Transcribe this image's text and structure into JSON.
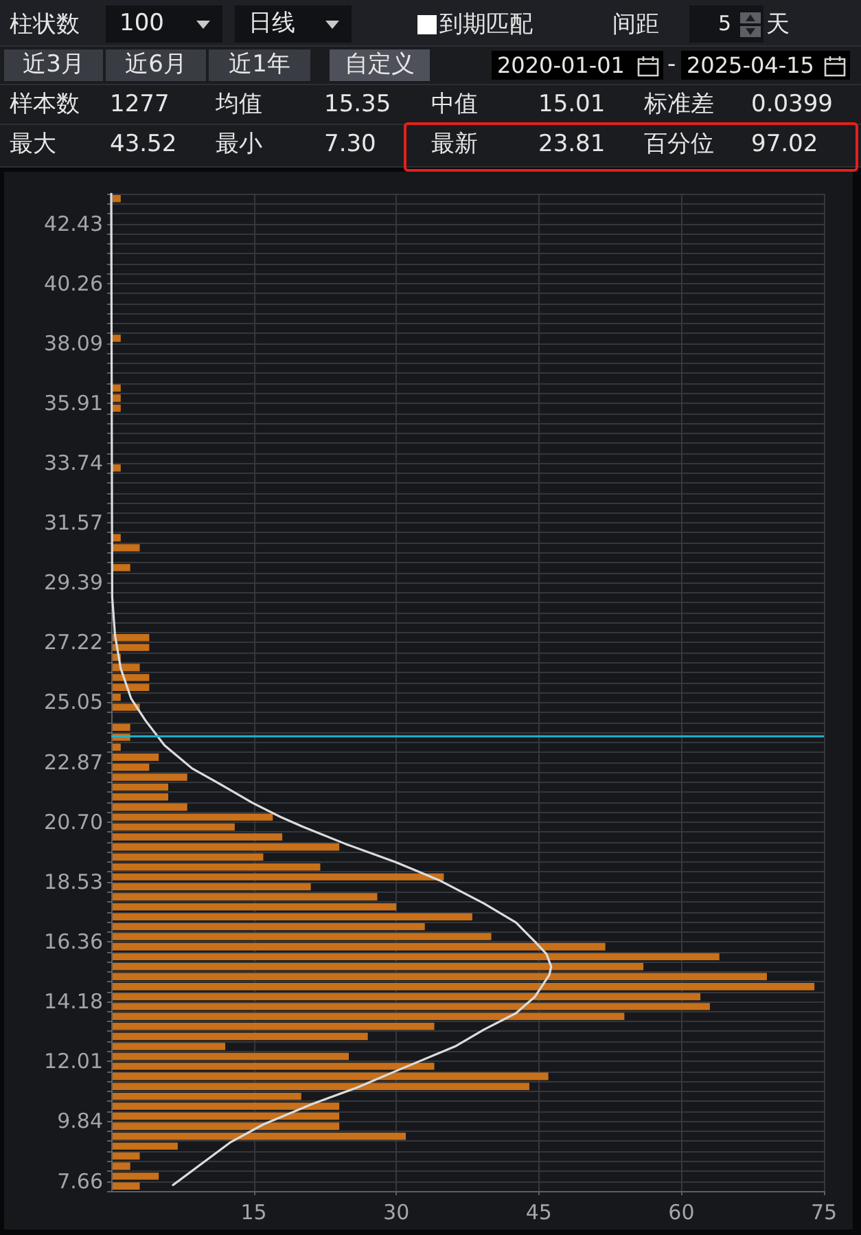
{
  "chart_data": {
    "type": "histogram",
    "orientation": "horizontal",
    "bins": [
      7.3,
      7.66,
      8.02,
      8.39,
      8.75,
      9.11,
      9.47,
      9.84,
      10.2,
      10.56,
      10.92,
      11.28,
      11.65,
      12.01,
      12.37,
      12.73,
      13.1,
      13.46,
      13.82,
      14.18,
      14.54,
      14.91,
      15.27,
      15.63,
      15.99,
      16.36,
      16.72,
      17.08,
      17.44,
      17.8,
      18.17,
      18.53,
      18.89,
      19.25,
      19.61,
      19.98,
      20.34,
      20.7,
      21.06,
      21.43,
      21.79,
      22.15,
      22.51,
      22.87,
      23.24,
      23.6,
      23.96,
      24.32,
      24.69,
      25.05,
      25.41,
      25.77,
      26.13,
      26.5,
      26.86,
      27.22,
      27.58,
      27.95,
      28.31,
      28.67,
      29.03,
      29.39,
      29.76,
      30.12,
      30.48,
      30.84,
      31.21,
      31.57,
      31.93,
      32.29,
      32.65,
      33.02,
      33.38,
      33.74,
      34.1,
      34.47,
      34.83,
      35.19,
      35.55,
      35.91,
      36.28,
      36.64,
      37,
      37.36,
      37.72,
      38.09,
      38.45,
      38.81,
      39.17,
      39.54,
      39.9,
      40.26,
      40.62,
      40.98,
      41.35,
      41.71,
      42.07,
      42.43,
      42.8,
      43.16,
      43.52
    ],
    "series": [
      {
        "color": "#c8701a",
        "values": [
          3,
          5,
          2,
          3,
          7,
          31,
          24,
          24,
          24,
          20,
          44,
          46,
          34,
          25,
          12,
          27,
          34,
          54,
          63,
          62,
          74,
          69,
          56,
          64,
          52,
          40,
          33,
          38,
          30,
          28,
          21,
          35,
          22,
          16,
          24,
          18,
          13,
          17,
          8,
          6,
          6,
          8,
          4,
          5,
          1,
          2,
          2,
          0,
          3,
          1,
          4,
          4,
          3,
          1,
          4,
          4,
          0,
          0,
          0,
          0,
          0,
          0,
          2,
          0,
          3,
          1,
          0,
          0,
          0,
          0,
          0,
          0,
          1,
          0,
          0,
          0,
          0,
          0,
          1,
          1,
          1,
          0,
          0,
          0,
          0,
          1,
          0,
          0,
          0,
          0,
          0,
          0,
          0,
          0,
          0,
          0,
          0,
          0,
          0,
          1
        ]
      },
      {
        "type": "line",
        "color": "#dcdcdc",
        "x": [
          7.52,
          9.06,
          9.72,
          10.47,
          11.05,
          11.65,
          12.57,
          13.16,
          13.76,
          14.36,
          15.15,
          15.45,
          15.91,
          16.35,
          17.05,
          17.75,
          18.59,
          19.25,
          19.9,
          20.54,
          20.89,
          21.39,
          22.09,
          22.65,
          23.49,
          24.39,
          25.18,
          26.28,
          27.48,
          28.88,
          43.52
        ],
        "values": [
          6.5,
          12.5,
          16,
          21.2,
          25.8,
          29.9,
          36.3,
          39.2,
          42.6,
          44.6,
          46.1,
          46.3,
          45.8,
          44.6,
          42.6,
          39.2,
          34.5,
          29.9,
          24.7,
          20.1,
          17.8,
          14.9,
          11.4,
          8.5,
          5.6,
          3.6,
          2.1,
          1,
          0.4,
          0.1,
          0
        ]
      }
    ],
    "xlim": [
      0,
      75
    ],
    "xticks": [
      15,
      30,
      45,
      60,
      75
    ],
    "ylim": [
      7.3,
      43.52
    ],
    "yticks": [
      {
        "value": 7.3,
        "label": null
      },
      7.66,
      {
        "value": 8.02,
        "label": null
      },
      {
        "value": 8.39,
        "label": null
      },
      {
        "value": 8.75,
        "label": null
      },
      {
        "value": 9.11,
        "label": null
      },
      {
        "value": 9.47,
        "label": null
      },
      9.84,
      {
        "value": 10.2,
        "label": null
      },
      {
        "value": 10.56,
        "label": null
      },
      {
        "value": 10.92,
        "label": null
      },
      {
        "value": 11.28,
        "label": null
      },
      {
        "value": 11.65,
        "label": null
      },
      12.01,
      {
        "value": 12.37,
        "label": null
      },
      {
        "value": 12.73,
        "label": null
      },
      {
        "value": 13.1,
        "label": null
      },
      {
        "value": 13.46,
        "label": null
      },
      {
        "value": 13.82,
        "label": null
      },
      14.18,
      {
        "value": 14.54,
        "label": null
      },
      {
        "value": 14.91,
        "label": null
      },
      {
        "value": 15.27,
        "label": null
      },
      {
        "value": 15.63,
        "label": null
      },
      {
        "value": 15.99,
        "label": null
      },
      16.36,
      {
        "value": 16.72,
        "label": null
      },
      {
        "value": 17.08,
        "label": null
      },
      {
        "value": 17.44,
        "label": null
      },
      {
        "value": 17.8,
        "label": null
      },
      {
        "value": 18.17,
        "label": null
      },
      18.53,
      {
        "value": 18.89,
        "label": null
      },
      {
        "value": 19.25,
        "label": null
      },
      {
        "value": 19.61,
        "label": null
      },
      {
        "value": 19.98,
        "label": null
      },
      {
        "value": 20.34,
        "label": null
      },
      {
        "value": 20.7,
        "label": "20.70"
      },
      {
        "value": 21.06,
        "label": null
      },
      {
        "value": 21.43,
        "label": null
      },
      {
        "value": 21.79,
        "label": null
      },
      {
        "value": 22.15,
        "label": null
      },
      {
        "value": 22.51,
        "label": null
      },
      22.87,
      {
        "value": 23.24,
        "label": null
      },
      {
        "value": 23.6,
        "label": null
      },
      {
        "value": 23.96,
        "label": null
      },
      {
        "value": 24.32,
        "label": null
      },
      {
        "value": 24.69,
        "label": null
      },
      25.05,
      {
        "value": 25.41,
        "label": null
      },
      {
        "value": 25.77,
        "label": null
      },
      {
        "value": 26.13,
        "label": null
      },
      {
        "value": 26.5,
        "label": null
      },
      {
        "value": 26.86,
        "label": null
      },
      27.22,
      {
        "value": 27.58,
        "label": null
      },
      {
        "value": 27.95,
        "label": null
      },
      {
        "value": 28.31,
        "label": null
      },
      {
        "value": 28.67,
        "label": null
      },
      {
        "value": 29.03,
        "label": null
      },
      29.39,
      {
        "value": 29.76,
        "label": null
      },
      {
        "value": 30.12,
        "label": null
      },
      {
        "value": 30.48,
        "label": null
      },
      {
        "value": 30.84,
        "label": null
      },
      {
        "value": 31.21,
        "label": null
      },
      31.57,
      {
        "value": 31.93,
        "label": null
      },
      {
        "value": 32.29,
        "label": null
      },
      {
        "value": 32.65,
        "label": null
      },
      {
        "value": 33.02,
        "label": null
      },
      {
        "value": 33.38,
        "label": null
      },
      33.74,
      {
        "value": 34.1,
        "label": null
      },
      {
        "value": 34.47,
        "label": null
      },
      {
        "value": 34.83,
        "label": null
      },
      {
        "value": 35.19,
        "label": null
      },
      {
        "value": 35.55,
        "label": null
      },
      35.91,
      {
        "value": 36.28,
        "label": null
      },
      {
        "value": 36.64,
        "label": null
      },
      {
        "value": 37,
        "label": null
      },
      {
        "value": 37.36,
        "label": null
      },
      {
        "value": 37.72,
        "label": null
      },
      38.09,
      {
        "value": 38.45,
        "label": null
      },
      {
        "value": 38.81,
        "label": null
      },
      {
        "value": 39.17,
        "label": null
      },
      {
        "value": 39.54,
        "label": null
      },
      {
        "value": 39.9,
        "label": null
      },
      40.26,
      {
        "value": 40.62,
        "label": null
      },
      {
        "value": 40.98,
        "label": null
      },
      {
        "value": 41.35,
        "label": null
      },
      {
        "value": 41.71,
        "label": null
      },
      {
        "value": 42.07,
        "label": null
      },
      42.43,
      {
        "value": 42.8,
        "label": null
      },
      {
        "value": 43.16,
        "label": null
      },
      {
        "value": 43.52,
        "label": null
      }
    ],
    "grid": true,
    "marker": "none",
    "ref_lines": [
      {
        "axis": "y",
        "value": 23.81,
        "color": "#1eb6d2"
      }
    ],
    "annotations": [
      "柱状数",
      "100",
      "日线",
      "到期匹配",
      "间距",
      "5",
      "天",
      "近3月",
      "近6月",
      "近1年",
      "自定义",
      "2020-01-01",
      "-",
      "2025-04-15",
      "样本数",
      "1277",
      "均值",
      "15.35",
      "中值",
      "15.01",
      "标准差",
      "0.0399",
      "最大",
      "43.52",
      "最小",
      "7.30",
      "最新",
      "23.81",
      "百分位",
      "97.02"
    ]
  }
}
